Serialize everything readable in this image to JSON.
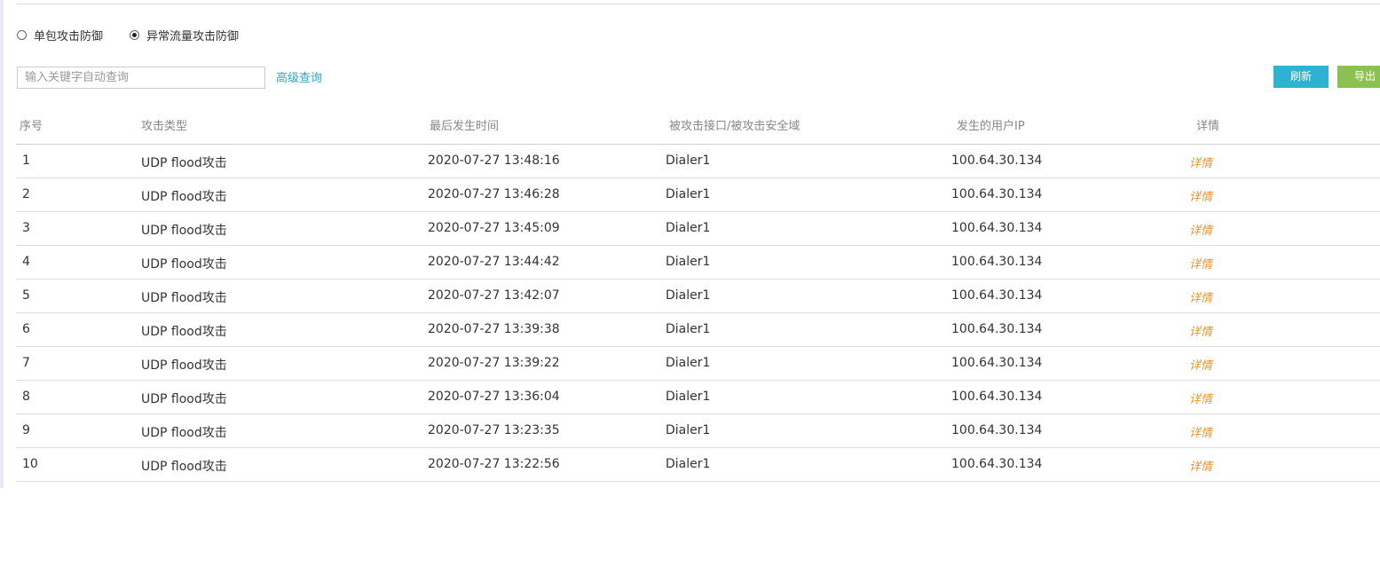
{
  "radios": [
    {
      "label": "单包攻击防御",
      "checked": false
    },
    {
      "label": "异常流量攻击防御",
      "checked": true
    }
  ],
  "search": {
    "placeholder": "输入关键字自动查询",
    "advanced": "高级查询"
  },
  "buttons": [
    "刷新",
    "导出"
  ],
  "table": {
    "columns": [
      "序号",
      "攻击类型",
      "最后发生时间",
      "被攻击接口/被攻击安全域",
      "发生的用户IP",
      "详情"
    ],
    "rows": [
      [
        "1",
        "UDP flood攻击",
        "2020-07-27 13:48:16",
        "Dialer1",
        "100.64.30.134",
        "详情"
      ],
      [
        "2",
        "UDP flood攻击",
        "2020-07-27 13:46:28",
        "Dialer1",
        "100.64.30.134",
        "详情"
      ],
      [
        "3",
        "UDP flood攻击",
        "2020-07-27 13:45:09",
        "Dialer1",
        "100.64.30.134",
        "详情"
      ],
      [
        "4",
        "UDP flood攻击",
        "2020-07-27 13:44:42",
        "Dialer1",
        "100.64.30.134",
        "详情"
      ],
      [
        "5",
        "UDP flood攻击",
        "2020-07-27 13:42:07",
        "Dialer1",
        "100.64.30.134",
        "详情"
      ],
      [
        "6",
        "UDP flood攻击",
        "2020-07-27 13:39:38",
        "Dialer1",
        "100.64.30.134",
        "详情"
      ],
      [
        "7",
        "UDP flood攻击",
        "2020-07-27 13:39:22",
        "Dialer1",
        "100.64.30.134",
        "详情"
      ],
      [
        "8",
        "UDP flood攻击",
        "2020-07-27 13:36:04",
        "Dialer1",
        "100.64.30.134",
        "详情"
      ],
      [
        "9",
        "UDP flood攻击",
        "2020-07-27 13:23:35",
        "Dialer1",
        "100.64.30.134",
        "详情"
      ],
      [
        "10",
        "UDP flood攻击",
        "2020-07-27 13:22:56",
        "Dialer1",
        "100.64.30.134",
        "详情"
      ]
    ]
  }
}
